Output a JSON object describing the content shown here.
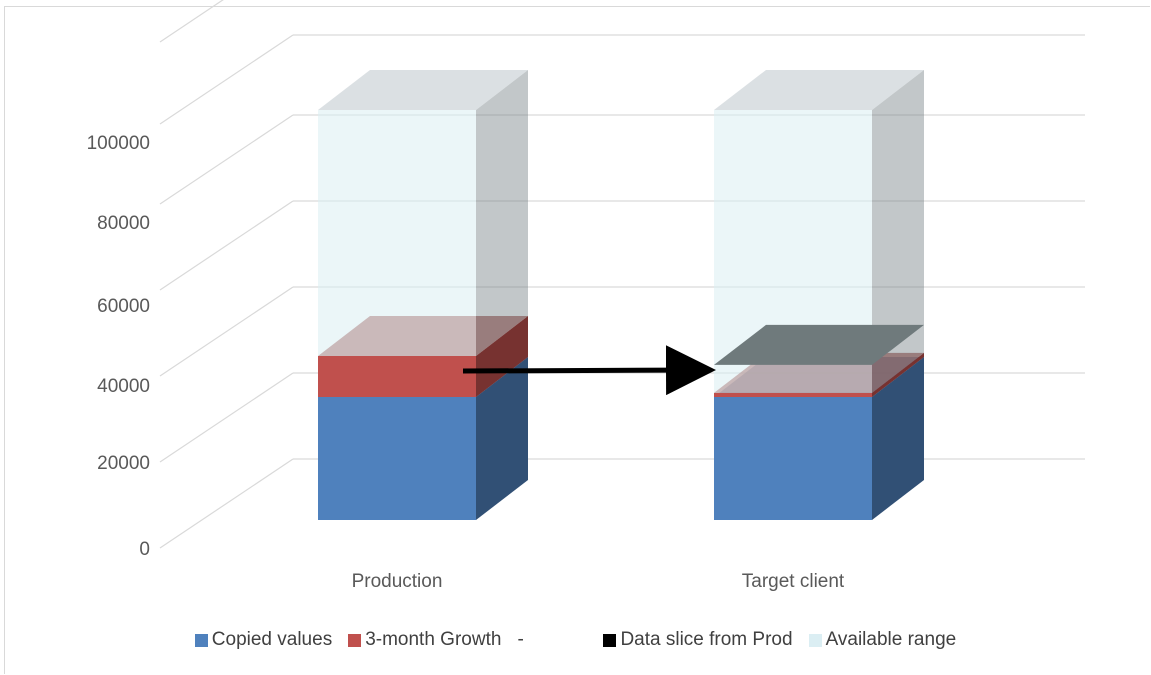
{
  "colors": {
    "copied": "#4f81bd",
    "growth": "#c0504d",
    "slice": "#000000",
    "available": "#dbeef3",
    "gridline": "#d9d9d9",
    "axis_text": "#595959"
  },
  "chart_data": {
    "type": "bar",
    "stacked": true,
    "three_d": true,
    "categories": [
      "Production",
      "Target client"
    ],
    "series": [
      {
        "name": "Copied values",
        "key": "copied",
        "values": [
          30000,
          30000
        ]
      },
      {
        "name": "3-month Growth",
        "key": "growth",
        "values": [
          10000,
          1000
        ]
      },
      {
        "name": "-",
        "key": "none",
        "values": [
          0,
          0
        ]
      },
      {
        "name": "Data slice from Prod",
        "key": "slice",
        "values": [
          0,
          0
        ]
      },
      {
        "name": "Available range",
        "key": "available",
        "values": [
          60000,
          69000
        ]
      }
    ],
    "y_ticks": [
      "0",
      "20000",
      "40000",
      "60000",
      "80000",
      "100000"
    ],
    "ylim": [
      0,
      100000
    ],
    "grid": true,
    "legend_position": "bottom",
    "annotation": "arrow from Production growth segment to Target client top"
  }
}
